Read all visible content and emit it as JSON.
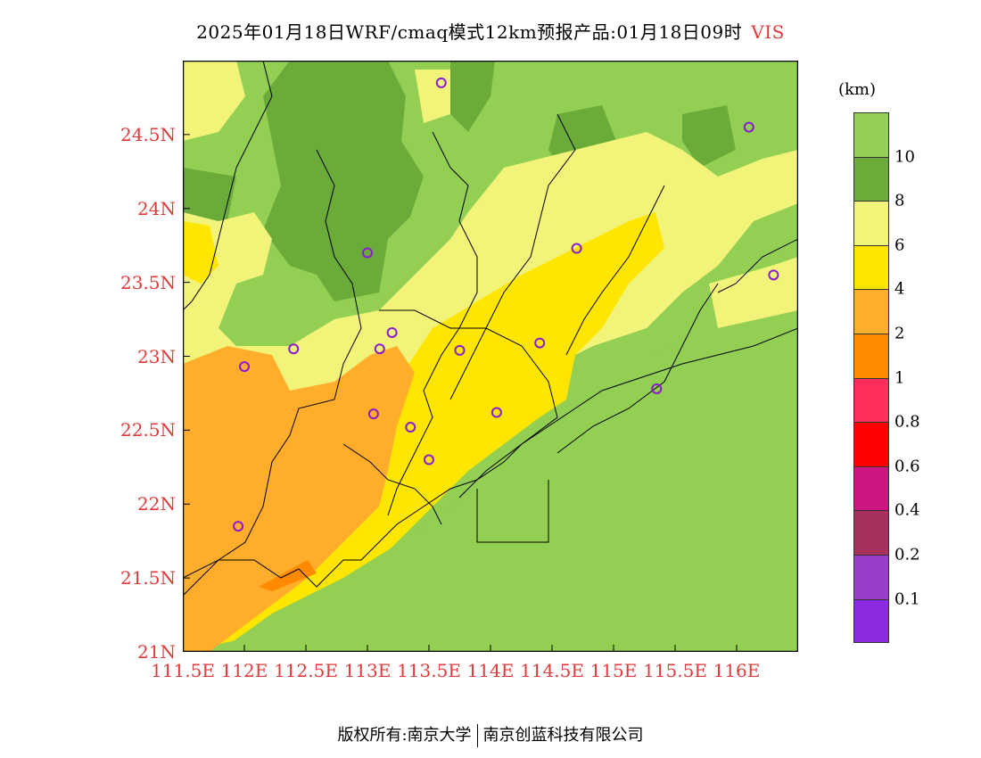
{
  "title": {
    "text": "2025年01月18日WRF/cmaq模式12km预报产品:01月18日09时",
    "variable": "VIS"
  },
  "axes": {
    "y_ticks": [
      {
        "label": "24.5N",
        "lat": 24.5
      },
      {
        "label": "24N",
        "lat": 24.0
      },
      {
        "label": "23.5N",
        "lat": 23.5
      },
      {
        "label": "23N",
        "lat": 23.0
      },
      {
        "label": "22.5N",
        "lat": 22.5
      },
      {
        "label": "22N",
        "lat": 22.0
      },
      {
        "label": "21.5N",
        "lat": 21.5
      },
      {
        "label": "21N",
        "lat": 21.0
      }
    ],
    "x_ticks": [
      {
        "label": "111.5E",
        "lon": 111.5
      },
      {
        "label": "112E",
        "lon": 112.0
      },
      {
        "label": "112.5E",
        "lon": 112.5
      },
      {
        "label": "113E",
        "lon": 113.0
      },
      {
        "label": "113.5E",
        "lon": 113.5
      },
      {
        "label": "114E",
        "lon": 114.0
      },
      {
        "label": "114.5E",
        "lon": 114.5
      },
      {
        "label": "115E",
        "lon": 115.0
      },
      {
        "label": "115.5E",
        "lon": 115.5
      },
      {
        "label": "116E",
        "lon": 116.0
      }
    ],
    "lon_range": [
      111.5,
      116.5
    ],
    "lat_range": [
      21.0,
      25.0
    ]
  },
  "colorbar": {
    "unit": "(km)",
    "colors_top_to_bottom": [
      "#92cf52",
      "#6aab3a",
      "#f2f47a",
      "#ffe600",
      "#ffad2a",
      "#ff8a00",
      "#ff2e5a",
      "#ff0000",
      "#cc1682",
      "#a8305e",
      "#9a3ccc",
      "#8a2be2"
    ],
    "labels_top_to_bottom": [
      "10",
      "8",
      "6",
      "4",
      "2",
      "1",
      "0.8",
      "0.6",
      "0.4",
      "0.2",
      "0.1"
    ]
  },
  "stations": [
    {
      "lon": 113.6,
      "lat": 24.85
    },
    {
      "lon": 116.1,
      "lat": 24.55
    },
    {
      "lon": 113.0,
      "lat": 23.7
    },
    {
      "lon": 114.7,
      "lat": 23.73
    },
    {
      "lon": 116.3,
      "lat": 23.55
    },
    {
      "lon": 112.4,
      "lat": 23.05
    },
    {
      "lon": 113.1,
      "lat": 23.05
    },
    {
      "lon": 113.2,
      "lat": 23.16
    },
    {
      "lon": 113.75,
      "lat": 23.04
    },
    {
      "lon": 114.4,
      "lat": 23.09
    },
    {
      "lon": 112.0,
      "lat": 22.93
    },
    {
      "lon": 115.35,
      "lat": 22.78
    },
    {
      "lon": 113.05,
      "lat": 22.61
    },
    {
      "lon": 113.35,
      "lat": 22.52
    },
    {
      "lon": 114.05,
      "lat": 22.62
    },
    {
      "lon": 113.5,
      "lat": 22.3
    },
    {
      "lon": 111.95,
      "lat": 21.85
    }
  ],
  "footer": {
    "left": "版权所有:南京大学",
    "right": "南京创蓝科技有限公司"
  }
}
